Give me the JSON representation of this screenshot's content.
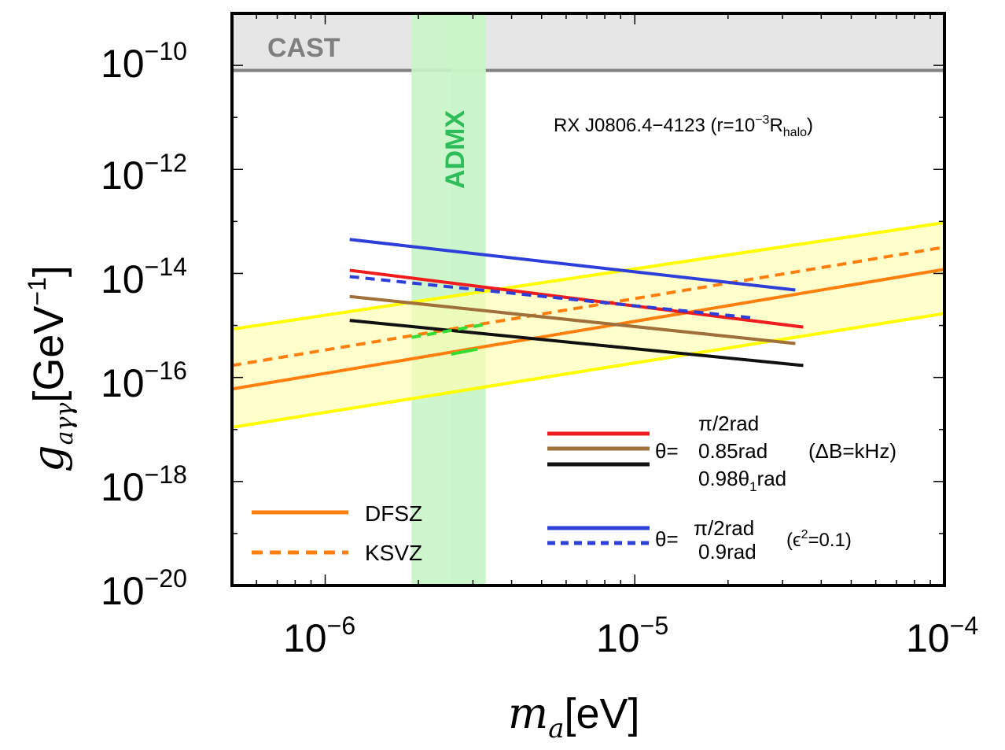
{
  "chart_data": {
    "type": "line",
    "x_scale": "log",
    "y_scale": "log",
    "xlim": [
      5e-07,
      0.0001
    ],
    "ylim": [
      1e-20,
      1e-09
    ],
    "x_ticks": [
      {
        "base": "10",
        "exp": "−6",
        "value": 1e-06
      },
      {
        "base": "10",
        "exp": "−5",
        "value": 1e-05
      },
      {
        "base": "10",
        "exp": "−4",
        "value": 0.0001
      }
    ],
    "y_ticks": [
      {
        "base": "10",
        "exp": "−10",
        "value": 1e-10
      },
      {
        "base": "10",
        "exp": "−12",
        "value": 1e-12
      },
      {
        "base": "10",
        "exp": "−14",
        "value": 1e-14
      },
      {
        "base": "10",
        "exp": "−16",
        "value": 1e-16
      },
      {
        "base": "10",
        "exp": "−18",
        "value": 1e-18
      },
      {
        "base": "10",
        "exp": "−20",
        "value": 1e-20
      }
    ],
    "xlabel": {
      "symbol": "m",
      "sub": "a",
      "unit": "[eV]"
    },
    "ylabel": {
      "symbol": "g",
      "sub": "aγγ",
      "unit": "[GeV",
      "unit_exp": "−1",
      "unit_close": "]"
    },
    "annotation": {
      "main": "RX J0806.4−4123 (r=10",
      "exp": "−3",
      "mid": "R",
      "sub": "halo",
      "end": ")"
    },
    "regions": [
      {
        "name": "CAST",
        "label": "CAST",
        "y_from": 8e-11,
        "y_to": 1e-09,
        "color": "#e6e6e6",
        "edge_color": "#808080",
        "text_color": "#7f7f7f"
      },
      {
        "name": "ADMX",
        "label": "ADMX",
        "x_from": 1.9e-06,
        "x_to": 3.3e-06,
        "x_inner": 2.55e-06,
        "color": "#c8f5c8",
        "text_color": "#2ebd5a"
      }
    ],
    "qcd_band": {
      "color": "#ffffb0",
      "edge_color": "#ffff00",
      "upper": {
        "x": [
          5e-07,
          0.0001
        ],
        "y": [
          8.5e-16,
          9.5e-14
        ]
      },
      "lower": {
        "x": [
          5e-07,
          0.0001
        ],
        "y": [
          1.1e-17,
          1.7e-15
        ]
      }
    },
    "series": [
      {
        "name": "DFSZ",
        "color": "#ff7f0e",
        "dash": false,
        "x": [
          5e-07,
          0.0001
        ],
        "y": [
          6e-17,
          1.2e-14
        ]
      },
      {
        "name": "KSVZ",
        "color": "#ff7f0e",
        "dash": true,
        "x": [
          5e-07,
          0.0001
        ],
        "y": [
          1.7e-16,
          3.2e-14
        ]
      },
      {
        "name": "θ=π/2rad (ΔB=kHz)",
        "color": "#ee1c1c",
        "dash": false,
        "x": [
          1.2e-06,
          3.5e-05
        ],
        "y": [
          1.15e-14,
          9.3e-16
        ]
      },
      {
        "name": "θ=0.85rad (ΔB=kHz)",
        "color": "#a0703a",
        "dash": false,
        "x": [
          1.2e-06,
          3.3e-05
        ],
        "y": [
          3.6e-15,
          4.5e-16
        ]
      },
      {
        "name": "θ=0.98θ1rad (ΔB=kHz)",
        "color": "#101010",
        "dash": false,
        "x": [
          1.2e-06,
          3.5e-05
        ],
        "y": [
          1.25e-15,
          1.7e-16
        ]
      },
      {
        "name": "θ=π/2rad (ε²=0.1)",
        "color": "#2e3fd9",
        "dash": false,
        "x": [
          1.2e-06,
          3.3e-05
        ],
        "y": [
          4.5e-14,
          4.8e-15
        ]
      },
      {
        "name": "θ=0.9rad (ε²=0.1)",
        "color": "#2e3fd9",
        "dash": true,
        "x": [
          1.2e-06,
          2.4e-05
        ],
        "y": [
          8.7e-15,
          1.4e-15
        ]
      },
      {
        "name": "ADMX-overlap upper",
        "color": "#33dd33",
        "dash": true,
        "x": [
          1.9e-06,
          3.3e-06
        ],
        "y": [
          5.9e-16,
          1.05e-15
        ]
      },
      {
        "name": "ADMX-overlap lower",
        "color": "#33dd33",
        "dash": false,
        "x": [
          2.55e-06,
          3.1e-06
        ],
        "y": [
          2.8e-16,
          3.5e-16
        ]
      }
    ],
    "legend_left": {
      "position": "bottom-left",
      "items": [
        {
          "label": "DFSZ",
          "color": "#ff7f0e",
          "dash": false
        },
        {
          "label": "KSVZ",
          "color": "#ff7f0e",
          "dash": true
        }
      ]
    },
    "legend_right_kHz": {
      "position": "bottom-right",
      "prefix": "θ=",
      "items": [
        {
          "label": "π/2rad",
          "color": "#ee1c1c"
        },
        {
          "label": "0.85rad",
          "color": "#a0703a"
        },
        {
          "label": "0.98θ",
          "sub": "1",
          "tail": "rad",
          "color": "#101010"
        }
      ],
      "note": "(ΔB=kHz)"
    },
    "legend_right_eps": {
      "position": "bottom-right",
      "prefix": "θ=",
      "items": [
        {
          "label": "π/2rad",
          "color": "#2e3fd9",
          "dash": false
        },
        {
          "label": "0.9rad",
          "color": "#2e3fd9",
          "dash": true
        }
      ],
      "note_main": "(ϵ",
      "note_exp": "2",
      "note_tail": "=0.1)"
    }
  }
}
